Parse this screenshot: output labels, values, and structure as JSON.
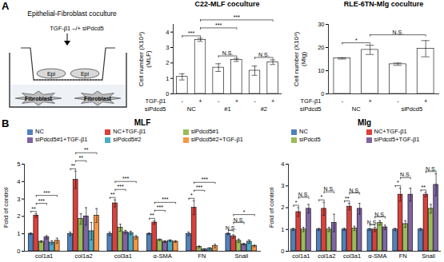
{
  "panel_labels": [
    "A",
    "B"
  ],
  "schematic": {
    "title": "Epithelial-Fibroblast coculture",
    "treatment": "TGF-β1 –/+ siPdcd5",
    "upper_cells": [
      "Epi",
      "Epi"
    ],
    "lower_cells": [
      "Fibroblast",
      "Fibroblast"
    ]
  },
  "chart_data": [
    {
      "type": "bar",
      "title": "C22-MLF coculture",
      "y_label": [
        "Cell number (X10⁴)",
        "(MLF)"
      ],
      "x_rows": [
        {
          "name": "TGF-β1",
          "labels": [
            "-",
            "+",
            "-",
            "+",
            "-",
            "+"
          ]
        },
        {
          "name": "siPdcd5",
          "labels": [
            "NC",
            "#1",
            "#2"
          ]
        }
      ],
      "values": [
        1.1,
        3.5,
        1.7,
        2.2,
        1.5,
        2.05
      ],
      "errors": [
        0.2,
        0.1,
        0.25,
        0.1,
        0.3,
        0.15
      ],
      "color": "#ffffff",
      "ylim": [
        0,
        4.5
      ],
      "yticks": [
        0,
        1,
        2,
        3,
        4
      ],
      "significance": [
        {
          "from": 0,
          "to": 1,
          "label": "***"
        },
        {
          "from": 1,
          "to": 3,
          "label": "***"
        },
        {
          "from": 1,
          "to": 5,
          "label": "***"
        },
        {
          "from": 2,
          "to": 3,
          "label": "N.S."
        },
        {
          "from": 4,
          "to": 5,
          "label": "N.S."
        }
      ]
    },
    {
      "type": "bar",
      "title": "RLE-6TN-Mlg coculture",
      "y_label": [
        "Cell number (X10⁴)",
        "(Mlg)"
      ],
      "x_rows": [
        {
          "name": "TGF-β1",
          "labels": [
            "-",
            "+",
            "-",
            "+"
          ]
        },
        {
          "name": "siPdcd5",
          "labels": [
            "NC",
            "siPdcd5"
          ]
        }
      ],
      "values": [
        15.3,
        19,
        12.8,
        19.5
      ],
      "errors": [
        0.3,
        2,
        0.5,
        3.5
      ],
      "color": "#ffffff",
      "ylim": [
        0,
        30
      ],
      "yticks": [
        0,
        10,
        20,
        30
      ],
      "significance": [
        {
          "from": 0,
          "to": 1,
          "label": "*"
        },
        {
          "from": 1,
          "to": 3,
          "label": "N.S."
        }
      ]
    },
    {
      "type": "grouped_bar",
      "title": "MLF",
      "y_label": [
        "Fold of control"
      ],
      "legend": "top",
      "categories": [
        "col1a1",
        "col1a2",
        "col3a1",
        "α-SMA",
        "FN",
        "Snail"
      ],
      "series": [
        {
          "name": "NC",
          "color": "#4f81bd",
          "values": [
            1,
            1,
            1,
            1,
            1,
            1
          ],
          "errors": [
            0.05,
            0.1,
            0.1,
            0.05,
            0.1,
            0.05
          ]
        },
        {
          "name": "NC+TGF-β1",
          "color": "#d9413b",
          "values": [
            2.05,
            4.1,
            2.75,
            1.65,
            2.5,
            0.85
          ],
          "errors": [
            0.1,
            0.5,
            0.2,
            0.1,
            0.4,
            0.1
          ]
        },
        {
          "name": "siPdcd5#1",
          "color": "#9bbb59",
          "values": [
            0.55,
            1.85,
            1.35,
            0.65,
            0.25,
            0.6
          ],
          "errors": [
            0.05,
            0.3,
            0.2,
            0.05,
            0.05,
            0.1
          ]
        },
        {
          "name": "siPdcd5#1+TGF-β1",
          "color": "#8064a2",
          "values": [
            0.8,
            2.0,
            1.1,
            0.55,
            0.1,
            0.4
          ],
          "errors": [
            0.1,
            0.5,
            0.1,
            0.05,
            0.05,
            0.05
          ]
        },
        {
          "name": "siPdcd5#2",
          "color": "#4bacc6",
          "values": [
            0.5,
            1.15,
            1.05,
            0.6,
            0.15,
            0.55
          ],
          "errors": [
            0.1,
            0.5,
            0.1,
            0.05,
            0.05,
            0.1
          ]
        },
        {
          "name": "siPdcd5#2+TGF-β1",
          "color": "#f79646",
          "values": [
            0.6,
            2.05,
            0.8,
            0.55,
            0.3,
            0.3
          ],
          "errors": [
            0.15,
            0.4,
            0.1,
            0.05,
            0.1,
            0.05
          ]
        }
      ],
      "ylim": [
        0,
        5
      ],
      "yticks": [
        0,
        1,
        2,
        3,
        4,
        5
      ],
      "significance": [
        {
          "group": 0,
          "from": 0,
          "to": 1,
          "label": "**"
        },
        {
          "group": 0,
          "from": 1,
          "to": 3,
          "label": "***"
        },
        {
          "group": 0,
          "from": 1,
          "to": 5,
          "label": "***"
        },
        {
          "group": 1,
          "from": 0,
          "to": 1,
          "label": "**"
        },
        {
          "group": 1,
          "from": 1,
          "to": 3,
          "label": "**"
        },
        {
          "group": 1,
          "from": 1,
          "to": 5,
          "label": "**"
        },
        {
          "group": 2,
          "from": 0,
          "to": 1,
          "label": "**"
        },
        {
          "group": 2,
          "from": 1,
          "to": 3,
          "label": "***"
        },
        {
          "group": 2,
          "from": 1,
          "to": 5,
          "label": "***"
        },
        {
          "group": 3,
          "from": 0,
          "to": 1,
          "label": "**"
        },
        {
          "group": 3,
          "from": 1,
          "to": 3,
          "label": "***"
        },
        {
          "group": 3,
          "from": 1,
          "to": 5,
          "label": "***"
        },
        {
          "group": 4,
          "from": 0,
          "to": 1,
          "label": "*"
        },
        {
          "group": 4,
          "from": 1,
          "to": 3,
          "label": "***"
        },
        {
          "group": 4,
          "from": 1,
          "to": 5,
          "label": "***"
        },
        {
          "group": 5,
          "from": 0,
          "to": 1,
          "label": "N.S."
        },
        {
          "group": 5,
          "from": 1,
          "to": 3,
          "label": "N.S."
        },
        {
          "group": 5,
          "from": 1,
          "to": 5,
          "label": "*"
        }
      ]
    },
    {
      "type": "grouped_bar",
      "title": "Mlg",
      "y_label": [
        "Fold of control"
      ],
      "legend": "top",
      "categories": [
        "col1a1",
        "col1a2",
        "col3a1",
        "α-SMA",
        "FN",
        "Snail"
      ],
      "series": [
        {
          "name": "NC",
          "color": "#4f81bd",
          "values": [
            1,
            1,
            1,
            1,
            1,
            1
          ],
          "errors": [
            0.05,
            0.05,
            0.05,
            0.05,
            0.05,
            0.05
          ]
        },
        {
          "name": "NC+TGF-β1",
          "color": "#d9413b",
          "values": [
            1.8,
            1.95,
            2.05,
            1.0,
            2.6,
            2.6
          ],
          "errors": [
            0.2,
            0.3,
            0.15,
            0.1,
            0.3,
            0.1
          ]
        },
        {
          "name": "siPdcd5",
          "color": "#9bbb59",
          "values": [
            1.0,
            1.0,
            1.05,
            1.3,
            1.25,
            1.95
          ],
          "errors": [
            0.1,
            0.1,
            0.1,
            0.1,
            0.15,
            0.2
          ]
        },
        {
          "name": "siPdcd5+TGF-β1",
          "color": "#8064a2",
          "values": [
            1.95,
            1.3,
            1.95,
            1.1,
            2.6,
            3.05
          ],
          "errors": [
            0.2,
            0.4,
            0.25,
            0.1,
            0.3,
            0.5
          ]
        }
      ],
      "ylim": [
        0,
        4
      ],
      "yticks": [
        0,
        1,
        2,
        3,
        4
      ],
      "significance": [
        {
          "group": 0,
          "from": 0,
          "to": 1,
          "label": "*"
        },
        {
          "group": 0,
          "from": 1,
          "to": 3,
          "label": "N.S."
        },
        {
          "group": 1,
          "from": 0,
          "to": 1,
          "label": "*"
        },
        {
          "group": 1,
          "from": 1,
          "to": 3,
          "label": "N.S."
        },
        {
          "group": 2,
          "from": 0,
          "to": 1,
          "label": "**"
        },
        {
          "group": 2,
          "from": 1,
          "to": 3,
          "label": "N.S."
        },
        {
          "group": 3,
          "from": 0,
          "to": 1,
          "label": "N.S."
        },
        {
          "group": 3,
          "from": 1,
          "to": 3,
          "label": "N.S."
        },
        {
          "group": 4,
          "from": 0,
          "to": 1,
          "label": "*"
        },
        {
          "group": 4,
          "from": 1,
          "to": 3,
          "label": "N.S."
        },
        {
          "group": 5,
          "from": 0,
          "to": 1,
          "label": "**"
        },
        {
          "group": 5,
          "from": 1,
          "to": 3,
          "label": "N.S."
        }
      ]
    }
  ]
}
